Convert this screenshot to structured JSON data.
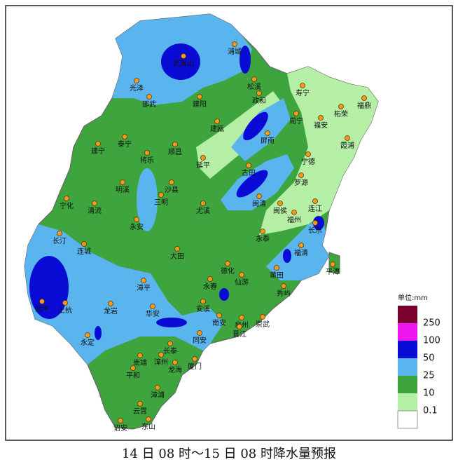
{
  "legend": {
    "unit": "单位:mm",
    "levels": [
      250,
      100,
      50,
      25,
      10,
      0.1
    ]
  },
  "cities": [
    "武夷山",
    "浦城",
    "光泽",
    "邵武",
    "建阳",
    "松溪",
    "政和",
    "寿宁",
    "柘荣",
    "福鼎",
    "周宁",
    "福安",
    "霞浦",
    "建瓯",
    "屏南",
    "泰宁",
    "建宁",
    "将乐",
    "顺昌",
    "延平",
    "古田",
    "宁德",
    "罗源",
    "明溪",
    "沙县",
    "三明",
    "宁化",
    "清流",
    "尤溪",
    "闽清",
    "闽侯",
    "连江",
    "福州",
    "长乐",
    "永安",
    "永泰",
    "长汀",
    "连城",
    "大田",
    "福清",
    "平潭",
    "德化",
    "莆田",
    "永春",
    "仙游",
    "秀屿",
    "武平",
    "上杭",
    "漳平",
    "龙岩",
    "华安",
    "安溪",
    "南安",
    "泉州",
    "崇武",
    "晋江",
    "永定",
    "同安",
    "长泰",
    "南靖",
    "漳州",
    "龙海",
    "厦门",
    "平和",
    "漳浦",
    "云霄",
    "诏安",
    "东山"
  ],
  "caption": "14 日 08 时～15 日 08 时降水量预报"
}
